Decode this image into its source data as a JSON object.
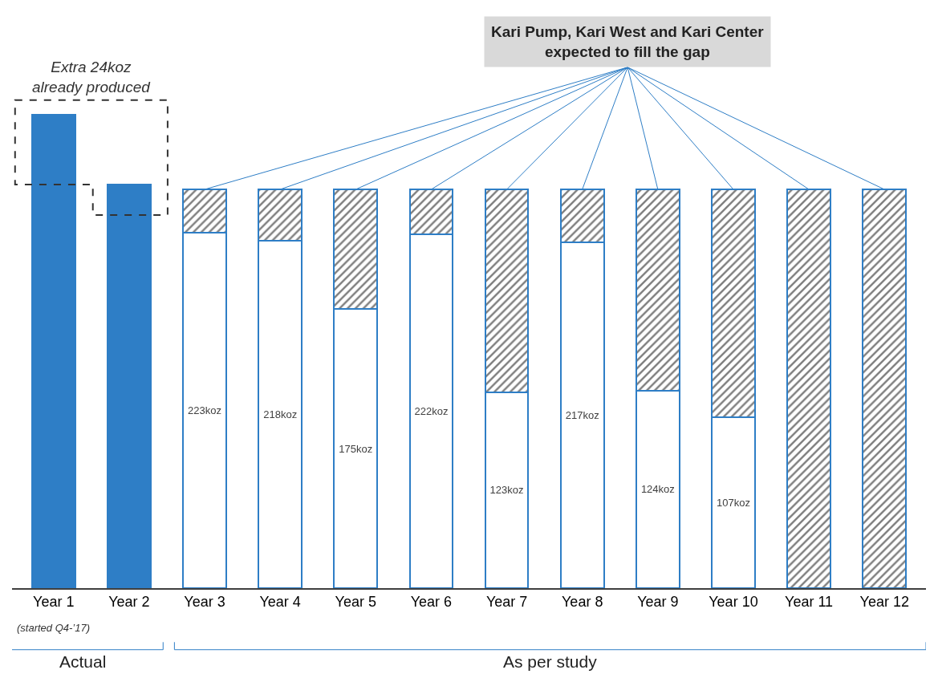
{
  "chart_data": {
    "type": "bar",
    "stacked": true,
    "categories": [
      "Year 1",
      "Year 2",
      "Year 3",
      "Year 4",
      "Year 5",
      "Year 6",
      "Year 7",
      "Year 8",
      "Year 9",
      "Year 10",
      "Year 11",
      "Year 12"
    ],
    "tick_labels": "x",
    "series": [
      {
        "color": "#2e7ec6",
        "colors": [
          "#2e7ec6",
          "#2e7ec6",
          "#ffffff",
          "#ffffff",
          "#ffffff",
          "#ffffff",
          "#ffffff",
          "#ffffff",
          "#ffffff",
          "#ffffff",
          "#ffffff",
          "#ffffff"
        ],
        "values": [
          297,
          253,
          223,
          218,
          175,
          222,
          123,
          217,
          124,
          107,
          null,
          null
        ],
        "value_labels": [
          null,
          null,
          "223koz",
          "218koz",
          "175koz",
          "222koz",
          "123koz",
          "217koz",
          "124koz",
          "107koz",
          null,
          null
        ]
      },
      {
        "color": "#2e7ec6",
        "values": [
          null,
          null,
          27,
          32,
          75,
          28,
          127,
          33,
          126,
          143,
          250,
          250
        ]
      }
    ],
    "annotations": [
      "Kari Pump, Kari West and Kari Center expected to fill the gap",
      "Extra 24koz already produced",
      "(started Q4-’17)",
      "Actual",
      "As per study"
    ]
  }
}
